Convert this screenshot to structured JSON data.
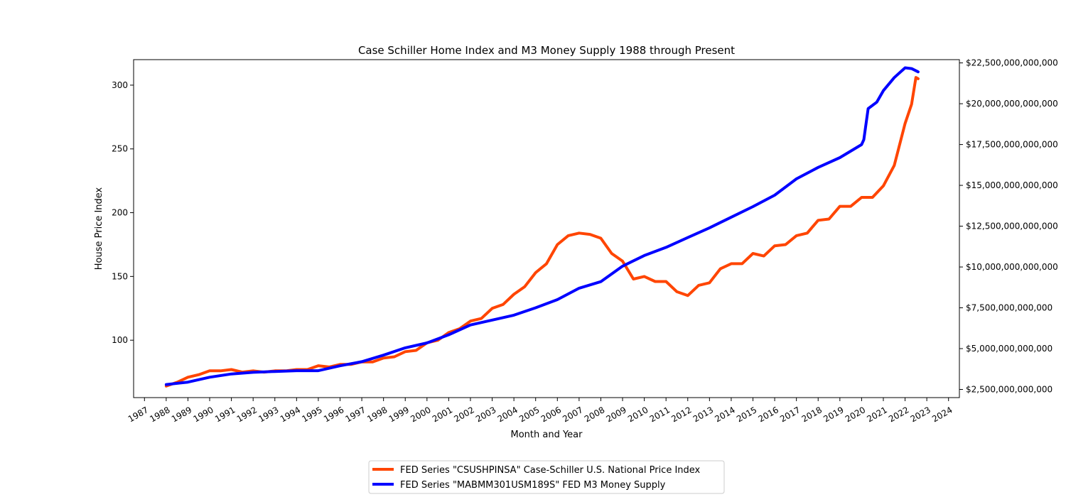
{
  "chart_data": {
    "type": "line",
    "title": "Case Schiller Home Index and M3 Money Supply 1988 through Present",
    "xlabel": "Month and Year",
    "ylabel_left": "House Price Index",
    "ylabel_right": "",
    "xlim": [
      1986.5,
      2024.5
    ],
    "x_ticks": [
      1987,
      1988,
      1989,
      1990,
      1991,
      1992,
      1993,
      1994,
      1995,
      1996,
      1997,
      1998,
      1999,
      2000,
      2001,
      2002,
      2003,
      2004,
      2005,
      2006,
      2007,
      2008,
      2009,
      2010,
      2011,
      2012,
      2013,
      2014,
      2015,
      2016,
      2017,
      2018,
      2019,
      2020,
      2021,
      2022,
      2023,
      2024
    ],
    "x_tick_labels": [
      "1987",
      "1988",
      "1989",
      "1990",
      "1991",
      "1992",
      "1993",
      "1994",
      "1995",
      "1996",
      "1997",
      "1998",
      "1999",
      "2000",
      "2001",
      "2002",
      "2003",
      "2004",
      "2005",
      "2006",
      "2007",
      "2008",
      "2009",
      "2010",
      "2011",
      "2012",
      "2013",
      "2014",
      "2015",
      "2016",
      "2017",
      "2018",
      "2019",
      "2020",
      "2021",
      "2022",
      "2023",
      "2024"
    ],
    "ylim_left": [
      55,
      320
    ],
    "y_ticks_left": [
      100,
      150,
      200,
      250,
      300
    ],
    "y_tick_labels_left": [
      "100",
      "150",
      "200",
      "250",
      "300"
    ],
    "ylim_right": [
      2000000000000,
      22700000000000
    ],
    "y_ticks_right": [
      2500000000000,
      5000000000000,
      7500000000000,
      10000000000000,
      12500000000000,
      15000000000000,
      17500000000000,
      20000000000000,
      22500000000000
    ],
    "y_tick_labels_right": [
      "$2,500,000,000,000",
      "$5,000,000,000,000",
      "$7,500,000,000,000",
      "$10,000,000,000,000",
      "$12,500,000,000,000",
      "$15,000,000,000,000",
      "$17,500,000,000,000",
      "$20,000,000,000,000",
      "$22,500,000,000,000"
    ],
    "legend_position": "bottom-center",
    "grid": false,
    "series": [
      {
        "name": "FED Series \"CSUSHPINSA\" Case-Schiller U.S. National Price Index",
        "axis": "left",
        "color": "#ff4500",
        "x": [
          1988.0,
          1988.5,
          1989.0,
          1989.5,
          1990.0,
          1990.5,
          1991.0,
          1991.5,
          1992.0,
          1992.5,
          1993.0,
          1993.5,
          1994.0,
          1994.5,
          1995.0,
          1995.5,
          1996.0,
          1996.5,
          1997.0,
          1997.5,
          1998.0,
          1998.5,
          1999.0,
          1999.5,
          2000.0,
          2000.5,
          2001.0,
          2001.5,
          2002.0,
          2002.5,
          2003.0,
          2003.5,
          2004.0,
          2004.5,
          2005.0,
          2005.5,
          2006.0,
          2006.5,
          2007.0,
          2007.5,
          2008.0,
          2008.5,
          2009.0,
          2009.5,
          2010.0,
          2010.5,
          2011.0,
          2011.5,
          2012.0,
          2012.5,
          2013.0,
          2013.5,
          2014.0,
          2014.5,
          2015.0,
          2015.5,
          2016.0,
          2016.5,
          2017.0,
          2017.5,
          2018.0,
          2018.5,
          2019.0,
          2019.5,
          2020.0,
          2020.5,
          2021.0,
          2021.5,
          2022.0,
          2022.3,
          2022.5,
          2022.6
        ],
        "values": [
          64,
          67,
          71,
          73,
          76,
          76,
          77,
          75,
          76,
          75,
          76,
          76,
          77,
          77,
          80,
          79,
          81,
          81,
          83,
          83,
          86,
          87,
          91,
          92,
          98,
          100,
          106,
          109,
          115,
          117,
          125,
          128,
          136,
          142,
          153,
          160,
          175,
          182,
          184,
          183,
          180,
          168,
          162,
          148,
          150,
          146,
          146,
          138,
          135,
          143,
          145,
          156,
          160,
          160,
          168,
          166,
          174,
          175,
          182,
          184,
          194,
          195,
          205,
          205,
          212,
          212,
          221,
          237,
          270,
          285,
          306,
          305
        ]
      },
      {
        "name": "FED Series \"MABMM301USM189S\" FED M3 Money Supply",
        "axis": "right",
        "color": "#0000ff",
        "x": [
          1988.0,
          1989.0,
          1990.0,
          1991.0,
          1992.0,
          1993.0,
          1994.0,
          1995.0,
          1996.0,
          1997.0,
          1998.0,
          1999.0,
          2000.0,
          2001.0,
          2002.0,
          2003.0,
          2004.0,
          2005.0,
          2006.0,
          2007.0,
          2008.0,
          2009.0,
          2010.0,
          2011.0,
          2012.0,
          2013.0,
          2014.0,
          2015.0,
          2016.0,
          2017.0,
          2018.0,
          2019.0,
          2020.0,
          2020.1,
          2020.3,
          2020.7,
          2021.0,
          2021.5,
          2022.0,
          2022.3,
          2022.6
        ],
        "values": [
          2800000000000,
          2950000000000,
          3250000000000,
          3450000000000,
          3550000000000,
          3600000000000,
          3650000000000,
          3650000000000,
          3950000000000,
          4200000000000,
          4600000000000,
          5050000000000,
          5350000000000,
          5850000000000,
          6450000000000,
          6750000000000,
          7050000000000,
          7500000000000,
          8000000000000,
          8700000000000,
          9100000000000,
          10050000000000,
          10700000000000,
          11200000000000,
          11800000000000,
          12400000000000,
          13050000000000,
          13700000000000,
          14400000000000,
          15400000000000,
          16100000000000,
          16700000000000,
          17500000000000,
          17800000000000,
          19700000000000,
          20100000000000,
          20800000000000,
          21600000000000,
          22200000000000,
          22150000000000,
          21950000000000
        ]
      }
    ]
  }
}
